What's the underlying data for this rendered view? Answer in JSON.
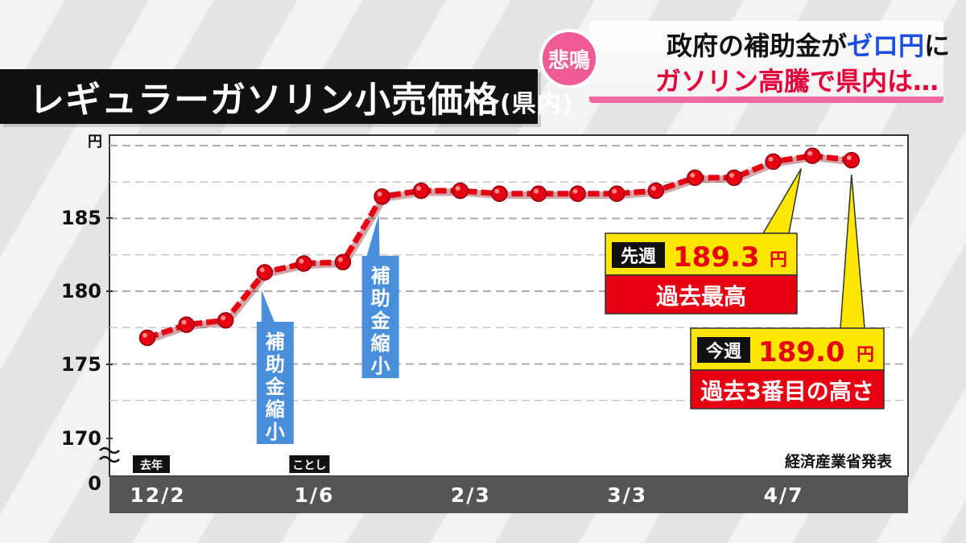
{
  "headline": {
    "badge": "悲鳴",
    "line1_prefix": "政府の補助金が",
    "line1_highlight": "ゼロ円",
    "line1_suffix": "に",
    "line2": "ガソリン高騰で県内は…"
  },
  "title": {
    "main": "レギュラーガソリン小売価格",
    "sub": "(県内)"
  },
  "chart_data": {
    "type": "line",
    "ylabel": "円",
    "yticks": [
      "185",
      "180",
      "175",
      "170",
      "0"
    ],
    "ylim": [
      170,
      190
    ],
    "axis_break": true,
    "x_tick_labels": [
      "12/2",
      "1/6",
      "2/3",
      "3/3",
      "4/7"
    ],
    "x_tick_indices": [
      0,
      4,
      8,
      12,
      16
    ],
    "year_markers": [
      {
        "label": "去年",
        "index": 0
      },
      {
        "label": "ことし",
        "index": 4
      }
    ],
    "series": [
      {
        "values": [
          176.8,
          177.7,
          178.0,
          181.3,
          181.9,
          182.0,
          186.5,
          186.9,
          186.9,
          186.7,
          186.7,
          186.7,
          186.7,
          186.9,
          187.8,
          187.8,
          188.9,
          189.3,
          189.0
        ],
        "color": "#e60012"
      }
    ],
    "source": "経済産業省発表",
    "annotations": [
      {
        "text": "補助金縮小",
        "index": 3
      },
      {
        "text": "補助金縮小",
        "index": 6
      }
    ],
    "callouts": [
      {
        "tag": "先週",
        "value": "189.3",
        "unit": "円",
        "caption": "過去最高",
        "index": 17
      },
      {
        "tag": "今週",
        "value": "189.0",
        "unit": "円",
        "caption": "過去3番目の高さ",
        "index": 18
      }
    ],
    "grid": true
  },
  "colors": {
    "line": "#e60012",
    "annotation_bg": "#4a8fdb",
    "callout_yellow": "#ffe600",
    "callout_red": "#e60012",
    "badge_pink": "#ef5b94"
  }
}
